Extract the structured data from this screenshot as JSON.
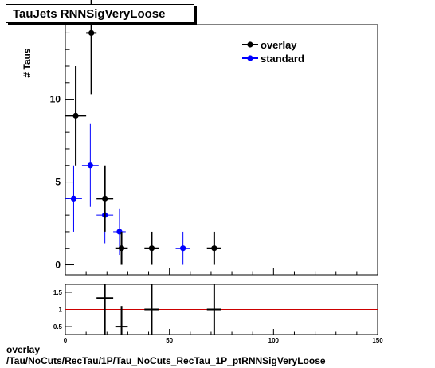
{
  "chart_data": [
    {
      "type": "scatter",
      "title": "TauJets RNNSigVeryLoose",
      "ylabel": "# Taus",
      "xlim": [
        0,
        150
      ],
      "ylim": [
        -0.6,
        14.5
      ],
      "yticks": [
        0,
        5,
        10
      ],
      "xticks": [
        0,
        50,
        100,
        150
      ],
      "grid": false,
      "legend_position": "top-right",
      "series": [
        {
          "name": "overlay",
          "color": "#000000",
          "points": [
            {
              "x": 5,
              "y": 9,
              "xerr": 5,
              "yerr_low": 3,
              "yerr_high": 3
            },
            {
              "x": 12.5,
              "y": 14,
              "xerr": 2.5,
              "yerr_low": 3.7,
              "yerr_high": 3.7
            },
            {
              "x": 19,
              "y": 4,
              "xerr": 4,
              "yerr_low": 2,
              "yerr_high": 2
            },
            {
              "x": 27,
              "y": 1,
              "xerr": 3,
              "yerr_low": 1,
              "yerr_high": 1
            },
            {
              "x": 41.5,
              "y": 1,
              "xerr": 3.5,
              "yerr_low": 1,
              "yerr_high": 1
            },
            {
              "x": 71.5,
              "y": 1,
              "xerr": 3.5,
              "yerr_low": 1,
              "yerr_high": 1
            }
          ]
        },
        {
          "name": "standard",
          "color": "#0000ff",
          "points": [
            {
              "x": 4,
              "y": 4,
              "xerr": 4,
              "yerr_low": 2,
              "yerr_high": 2
            },
            {
              "x": 12,
              "y": 6,
              "xerr": 4,
              "yerr_low": 2.5,
              "yerr_high": 2.5
            },
            {
              "x": 19,
              "y": 3,
              "xerr": 4,
              "yerr_low": 1.7,
              "yerr_high": 1.7
            },
            {
              "x": 26,
              "y": 2,
              "xerr": 3,
              "yerr_low": 1.4,
              "yerr_high": 1.4
            },
            {
              "x": 56.5,
              "y": 1,
              "xerr": 3.5,
              "yerr_low": 1,
              "yerr_high": 1
            }
          ]
        }
      ]
    },
    {
      "type": "scatter",
      "xlim": [
        0,
        150
      ],
      "ylim": [
        0.27,
        1.73
      ],
      "yticks": [
        0.5,
        1,
        1.5
      ],
      "xticks": [
        0,
        50,
        100,
        150
      ],
      "reference_line": 1,
      "reference_color": "#cc0000",
      "points": [
        {
          "x": 19,
          "y": 1.33,
          "xerr": 4,
          "yerr_low": 1.2,
          "yerr_high": 1.2
        },
        {
          "x": 27,
          "y": 0.5,
          "xerr": 3,
          "yerr_low": 0.6,
          "yerr_high": 0.6
        },
        {
          "x": 41.5,
          "y": 1,
          "xerr": 3.5,
          "yerr_low": 1.4,
          "yerr_high": 1.4
        },
        {
          "x": 71.5,
          "y": 1,
          "xerr": 3.5,
          "yerr_low": 1.4,
          "yerr_high": 1.4
        }
      ]
    }
  ],
  "footer": {
    "line1": "overlay",
    "line2": "/Tau/NoCuts/RecTau/1P/Tau_NoCuts_RecTau_1P_ptRNNSigVeryLoose"
  }
}
